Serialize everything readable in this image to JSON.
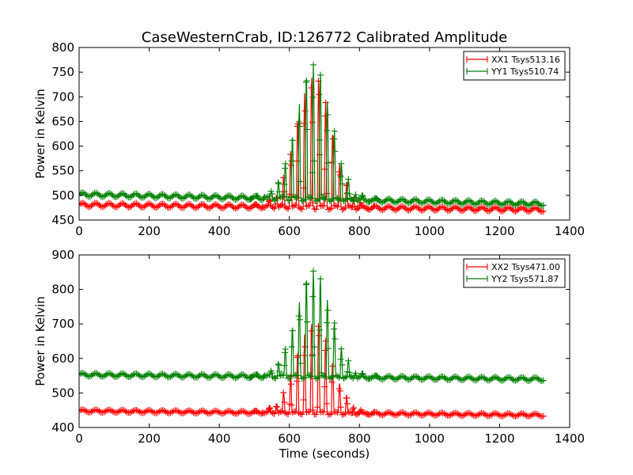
{
  "figure": {
    "title": "CaseWesternCrab, ID:126772 Calibrated Amplitude",
    "xlabel": "Time (seconds)"
  },
  "chart_data": [
    {
      "type": "line",
      "title": "CaseWesternCrab, ID:126772 Calibrated Amplitude",
      "xlabel": "",
      "ylabel": "Power in Kelvin",
      "xlim": [
        0,
        1400
      ],
      "ylim": [
        450,
        800
      ],
      "xticks": [
        0,
        200,
        400,
        600,
        800,
        1000,
        1200,
        1400
      ],
      "yticks": [
        450,
        500,
        550,
        600,
        650,
        700,
        750,
        800
      ],
      "legend_position": "top-right",
      "series": [
        {
          "name": "XX1 Tsys513.16",
          "color": "#ff0000",
          "baseline_start": 481,
          "baseline_end": 471,
          "ripple": 4,
          "burst_start": 500,
          "burst_end": 845,
          "burst_center": 670,
          "burst_width": 70,
          "burst_peak": 270,
          "x_end": 1325
        },
        {
          "name": "YY1 Tsys510.74",
          "color": "#008000",
          "baseline_start": 502,
          "baseline_end": 483,
          "ripple": 4,
          "burst_start": 485,
          "burst_end": 860,
          "burst_center": 670,
          "burst_width": 70,
          "burst_peak": 275,
          "x_end": 1325
        }
      ]
    },
    {
      "type": "line",
      "title": "",
      "xlabel": "Time (seconds)",
      "ylabel": "Power in Kelvin",
      "xlim": [
        0,
        1400
      ],
      "ylim": [
        400,
        900
      ],
      "xticks": [
        0,
        200,
        400,
        600,
        800,
        1000,
        1200,
        1400
      ],
      "yticks": [
        400,
        500,
        600,
        700,
        800,
        900
      ],
      "legend_position": "top-right",
      "series": [
        {
          "name": "XX2 Tsys471.00",
          "color": "#ff0000",
          "baseline_start": 448,
          "baseline_end": 436,
          "ripple": 4,
          "burst_start": 500,
          "burst_end": 845,
          "burst_center": 670,
          "burst_width": 70,
          "burst_peak": 265,
          "x_end": 1325
        },
        {
          "name": "YY2 Tsys571.87",
          "color": "#008000",
          "baseline_start": 553,
          "baseline_end": 540,
          "ripple": 5,
          "burst_start": 485,
          "burst_end": 860,
          "burst_center": 670,
          "burst_width": 70,
          "burst_peak": 310,
          "x_end": 1325
        }
      ]
    }
  ]
}
